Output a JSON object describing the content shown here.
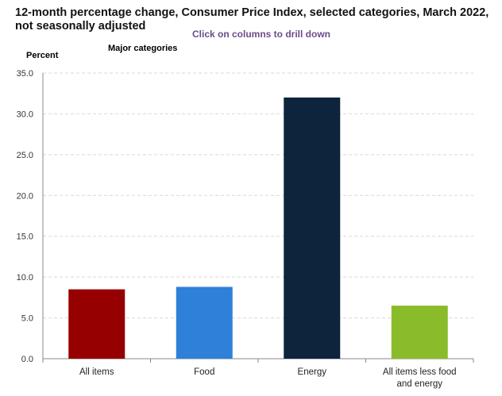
{
  "chart_data": {
    "type": "bar",
    "title": "12-month percentage change, Consumer Price Index, selected categories, March 2022, not seasonally adjusted",
    "subtitle": "Click on columns to drill down",
    "ylabel": "Percent",
    "drilldown_level": "Major categories",
    "categories": [
      "All items",
      "Food",
      "Energy",
      "All items less food and energy"
    ],
    "values": [
      8.5,
      8.8,
      32.0,
      6.5
    ],
    "colors": [
      "#960000",
      "#2f80d8",
      "#0e233c",
      "#8abb2a"
    ],
    "ylim": [
      0,
      35
    ],
    "yticks": [
      "0.0",
      "5.0",
      "10.0",
      "15.0",
      "20.0",
      "25.0",
      "30.0",
      "35.0"
    ],
    "grid": true,
    "legend": "none"
  }
}
